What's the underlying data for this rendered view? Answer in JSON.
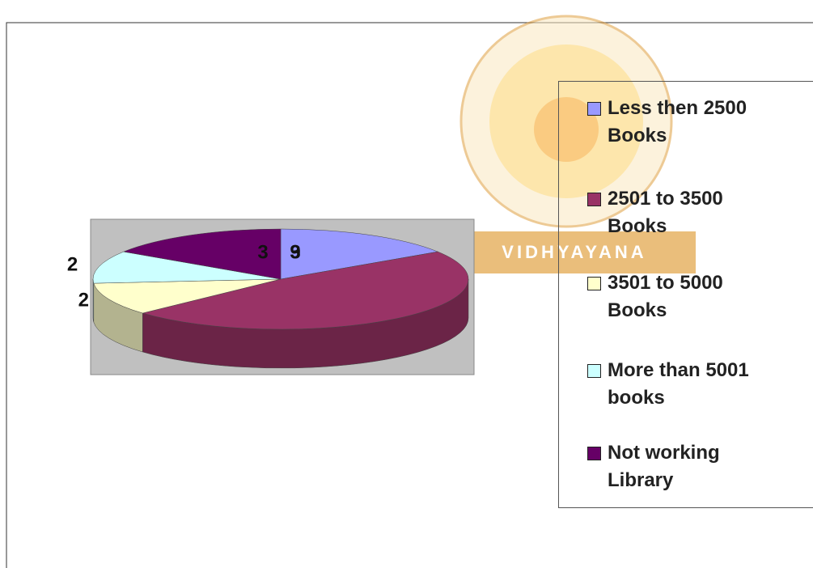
{
  "chart_data": {
    "type": "pie3d",
    "categories": [
      "Less then 2500 Books",
      "2501 to 3500 Books",
      "3501 to 5000 Books",
      "More than 5001 books",
      "Not working Library"
    ],
    "values": [
      3,
      9,
      2,
      2,
      3
    ],
    "colors": [
      "#9999ff",
      "#993366",
      "#ffffcc",
      "#ccffff",
      "#660066"
    ],
    "legend": "right",
    "watermark": "VIDHYAYANA"
  }
}
